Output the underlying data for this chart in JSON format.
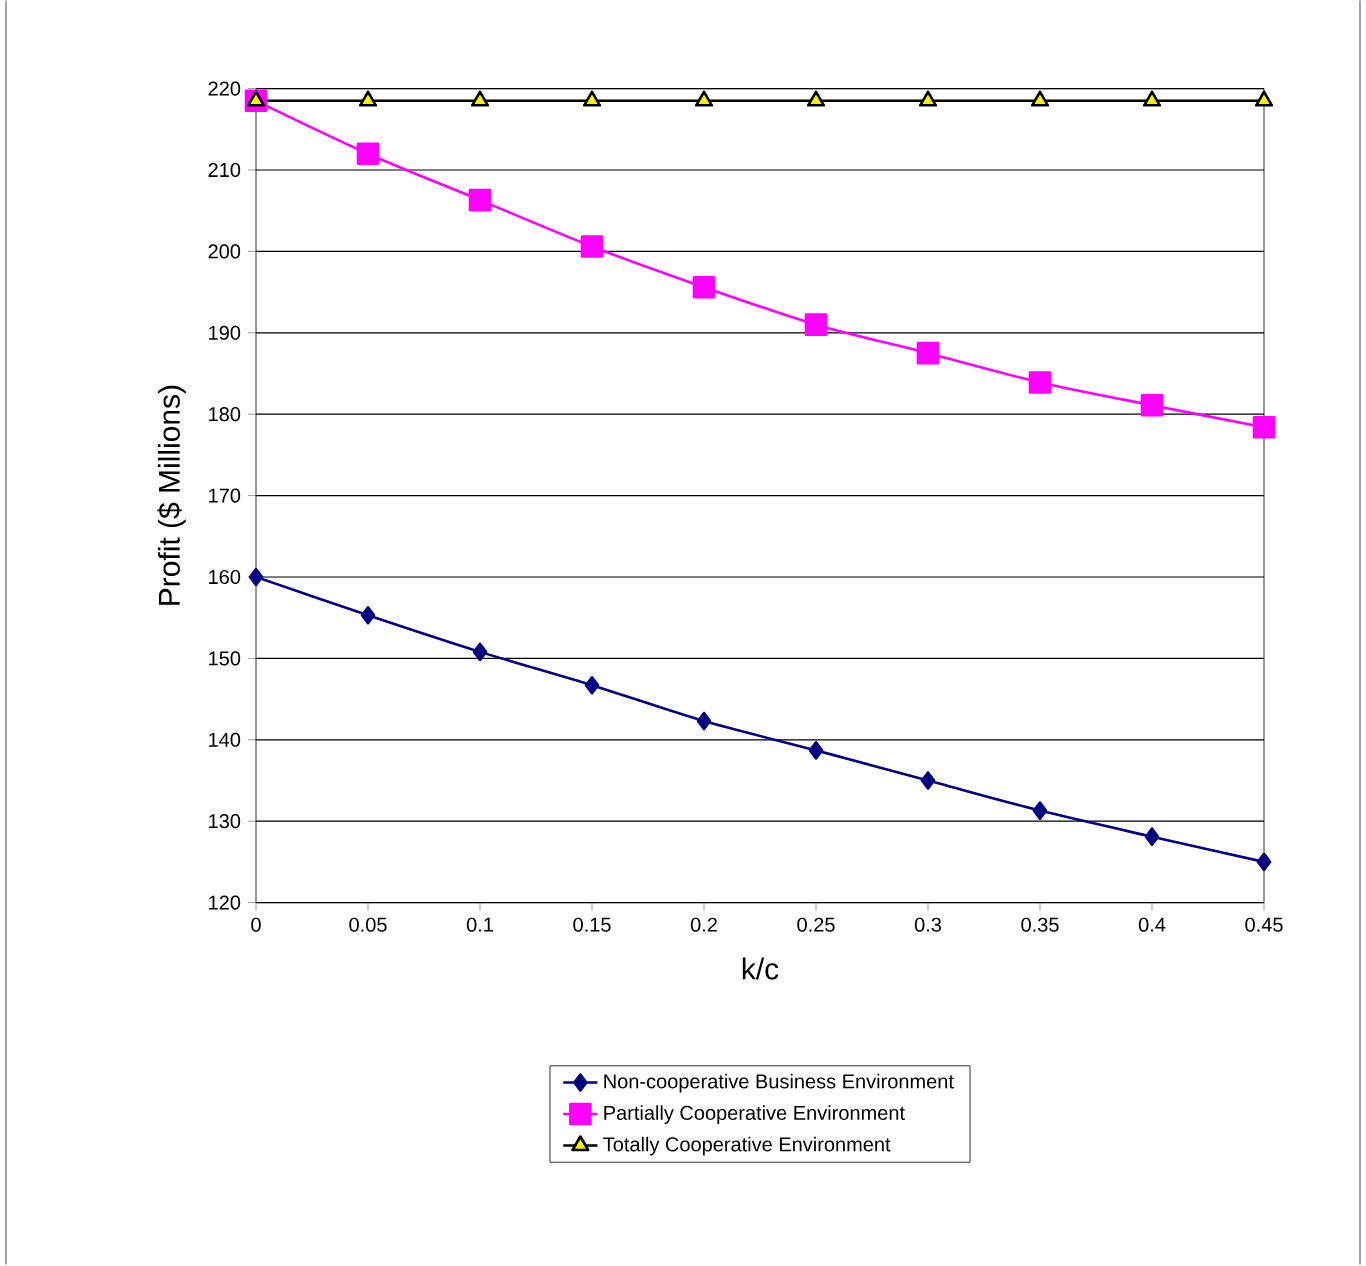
{
  "chart_data": {
    "type": "line",
    "xlabel": "k/c",
    "ylabel": "Profit ($ Millions)",
    "x": [
      0,
      0.05,
      0.1,
      0.15,
      0.2,
      0.25,
      0.3,
      0.35,
      0.4,
      0.45
    ],
    "series": [
      {
        "name": "Non-cooperative Business Environment",
        "color": "#000080",
        "marker": "diamond",
        "values": [
          160,
          155.3,
          150.8,
          146.7,
          142.3,
          138.7,
          135,
          131.3,
          128.1,
          125
        ]
      },
      {
        "name": "Partially Cooperative Environment",
        "color": "#ff00ff",
        "marker": "square",
        "values": [
          218.5,
          212,
          206.3,
          200.6,
          195.6,
          191,
          187.5,
          183.9,
          181.1,
          178.4
        ]
      },
      {
        "name": "Totally Cooperative Environment",
        "color": "#000000",
        "marker": "triangle",
        "values": [
          218.5,
          218.5,
          218.5,
          218.5,
          218.5,
          218.5,
          218.5,
          218.5,
          218.5,
          218.5
        ]
      }
    ],
    "xlim": [
      0,
      0.45
    ],
    "xticks": [
      0,
      0.05,
      0.1,
      0.15,
      0.2,
      0.25,
      0.3,
      0.35,
      0.4,
      0.45
    ],
    "ylim": [
      120,
      220
    ],
    "yticks": [
      120,
      130,
      140,
      150,
      160,
      170,
      180,
      190,
      200,
      210,
      220
    ],
    "grid": "y",
    "legend": "bottom",
    "line_style": "solid"
  }
}
